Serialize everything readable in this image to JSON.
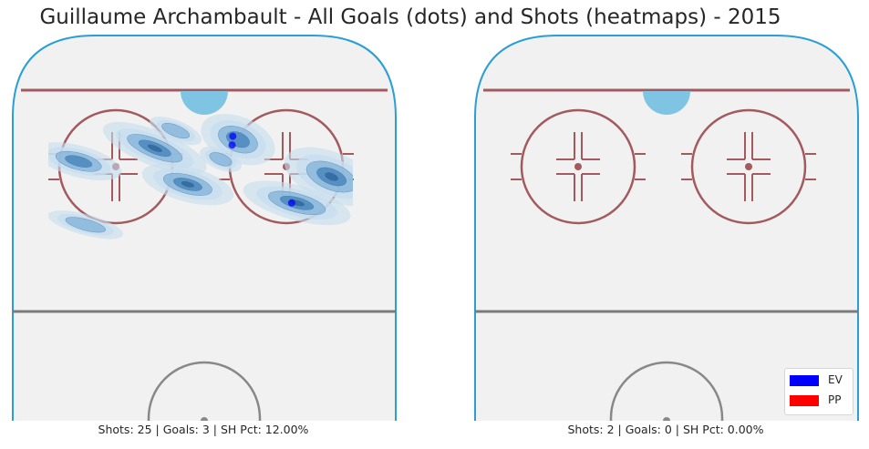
{
  "title": "Guillaume Archambault - All Goals (dots) and Shots (heatmaps) - 2015",
  "colors": {
    "ice": "#f1f1f1",
    "boards": "#2a9fd6",
    "goal_line": "#a25a5e",
    "circle": "#a25a5e",
    "crease": "#7fc4e3",
    "blue_line": "#7a7a7a",
    "center_circle": "#888888",
    "heat_light": "#c7ddef",
    "heat_mid": "#7fb1d8",
    "heat_dark": "#3d7db8",
    "goal_ev": "#0000ff",
    "goal_pp": "#ff0000"
  },
  "legend": [
    {
      "label": "EV",
      "color": "#0000ff"
    },
    {
      "label": "PP",
      "color": "#ff0000"
    }
  ],
  "chart_data": [
    {
      "type": "heatmap",
      "panel": "left",
      "caption": "Shots: 25 | Goals: 3 | SH Pct: 12.00%",
      "shots": 25,
      "goals": 3,
      "sh_pct": "12.00%",
      "goal_points": [
        {
          "x": 0.585,
          "y": 0.215,
          "strength": "EV"
        },
        {
          "x": 0.583,
          "y": 0.255,
          "strength": "EV"
        },
        {
          "x": 0.755,
          "y": 0.52,
          "strength": "EV"
        }
      ],
      "heat_clusters": [
        {
          "x": 0.36,
          "y": 0.27,
          "rx": 0.1,
          "ry": 0.05,
          "level": 3
        },
        {
          "x": 0.455,
          "y": 0.435,
          "rx": 0.085,
          "ry": 0.05,
          "level": 3
        },
        {
          "x": 0.87,
          "y": 0.4,
          "rx": 0.09,
          "ry": 0.07,
          "level": 3
        },
        {
          "x": 0.77,
          "y": 0.52,
          "rx": 0.1,
          "ry": 0.05,
          "level": 3
        },
        {
          "x": 0.6,
          "y": 0.23,
          "rx": 0.07,
          "ry": 0.065,
          "level": 2
        },
        {
          "x": 0.14,
          "y": 0.33,
          "rx": 0.08,
          "ry": 0.045,
          "level": 2
        },
        {
          "x": 0.42,
          "y": 0.19,
          "rx": 0.05,
          "ry": 0.03,
          "level": 1
        },
        {
          "x": 0.16,
          "y": 0.62,
          "rx": 0.07,
          "ry": 0.03,
          "level": 1
        },
        {
          "x": 0.55,
          "y": 0.32,
          "rx": 0.04,
          "ry": 0.03,
          "level": 1
        }
      ]
    },
    {
      "type": "heatmap",
      "panel": "right",
      "caption": "Shots: 2 | Goals: 0 | SH Pct: 0.00%",
      "shots": 2,
      "goals": 0,
      "sh_pct": "0.00%",
      "goal_points": [],
      "heat_clusters": []
    }
  ]
}
